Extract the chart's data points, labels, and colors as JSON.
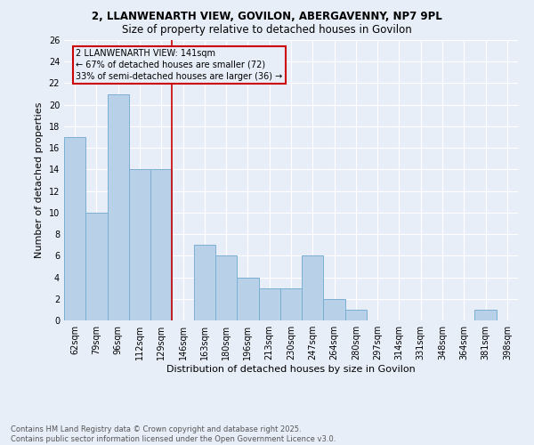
{
  "title1": "2, LLANWENARTH VIEW, GOVILON, ABERGAVENNY, NP7 9PL",
  "title2": "Size of property relative to detached houses in Govilon",
  "xlabel": "Distribution of detached houses by size in Govilon",
  "ylabel": "Number of detached properties",
  "categories": [
    "62sqm",
    "79sqm",
    "96sqm",
    "112sqm",
    "129sqm",
    "146sqm",
    "163sqm",
    "180sqm",
    "196sqm",
    "213sqm",
    "230sqm",
    "247sqm",
    "264sqm",
    "280sqm",
    "297sqm",
    "314sqm",
    "331sqm",
    "348sqm",
    "364sqm",
    "381sqm",
    "398sqm"
  ],
  "values": [
    17,
    10,
    21,
    14,
    14,
    0,
    7,
    6,
    4,
    3,
    3,
    6,
    2,
    1,
    0,
    0,
    0,
    0,
    0,
    1,
    0
  ],
  "bar_color": "#b8d0e8",
  "bar_edge_color": "#7aafd4",
  "vline_index": 5,
  "vline_color": "#cc0000",
  "annotation_text": "2 LLANWENARTH VIEW: 141sqm\n← 67% of detached houses are smaller (72)\n33% of semi-detached houses are larger (36) →",
  "ylim": [
    0,
    26
  ],
  "yticks": [
    0,
    2,
    4,
    6,
    8,
    10,
    12,
    14,
    16,
    18,
    20,
    22,
    24,
    26
  ],
  "footer": "Contains HM Land Registry data © Crown copyright and database right 2025.\nContains public sector information licensed under the Open Government Licence v3.0.",
  "bg_color": "#e8eef8",
  "grid_color": "#ffffff",
  "title1_fontsize": 8.5,
  "title2_fontsize": 8.5,
  "xlabel_fontsize": 8,
  "ylabel_fontsize": 8,
  "tick_fontsize": 7,
  "annot_fontsize": 7
}
